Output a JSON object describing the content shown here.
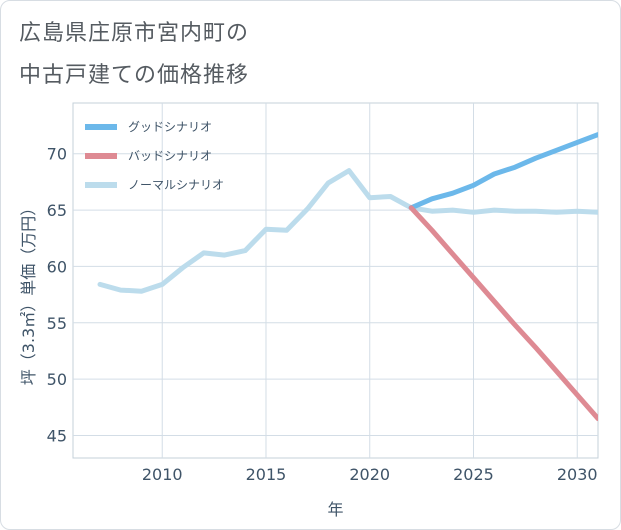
{
  "title_line1": "広島県庄原市宮内町の",
  "title_line2": "中古戸建ての価格推移",
  "chart_data": {
    "type": "line",
    "xlabel": "年",
    "ylabel": "坪（3.3㎡）単価（万円）",
    "xlim": [
      2005.7,
      2031
    ],
    "ylim": [
      43,
      74.5
    ],
    "x_ticks": [
      2010,
      2015,
      2020,
      2025,
      2030
    ],
    "y_ticks": [
      45,
      50,
      55,
      60,
      65,
      70
    ],
    "legend_position": "top-left",
    "grid": true,
    "series": [
      {
        "name": "グッドシナリオ",
        "color": "#6cb8ea",
        "x": [
          2022,
          2023,
          2024,
          2025,
          2026,
          2027,
          2028,
          2029,
          2030,
          2031
        ],
        "y": [
          65.2,
          66.0,
          66.5,
          67.2,
          68.2,
          68.8,
          69.6,
          70.3,
          71.0,
          71.7
        ]
      },
      {
        "name": "バッドシナリオ",
        "color": "#de8a93",
        "x": [
          2022,
          2023,
          2024,
          2025,
          2026,
          2027,
          2028,
          2029,
          2030,
          2031
        ],
        "y": [
          65.2,
          63.2,
          61.1,
          59.0,
          56.9,
          54.8,
          52.8,
          50.7,
          48.6,
          46.5
        ]
      },
      {
        "name": "ノーマルシナリオ",
        "color": "#bcdcec",
        "x": [
          2007,
          2008,
          2009,
          2010,
          2011,
          2012,
          2013,
          2014,
          2015,
          2016,
          2017,
          2018,
          2019,
          2020,
          2021,
          2022,
          2023,
          2024,
          2025,
          2026,
          2027,
          2028,
          2029,
          2030,
          2031
        ],
        "y": [
          58.4,
          57.9,
          57.8,
          58.4,
          59.9,
          61.2,
          61.0,
          61.4,
          63.3,
          63.2,
          65.1,
          67.4,
          68.5,
          66.1,
          66.2,
          65.2,
          64.9,
          65.0,
          64.8,
          65.0,
          64.9,
          64.9,
          64.8,
          64.9,
          64.8
        ]
      }
    ]
  }
}
